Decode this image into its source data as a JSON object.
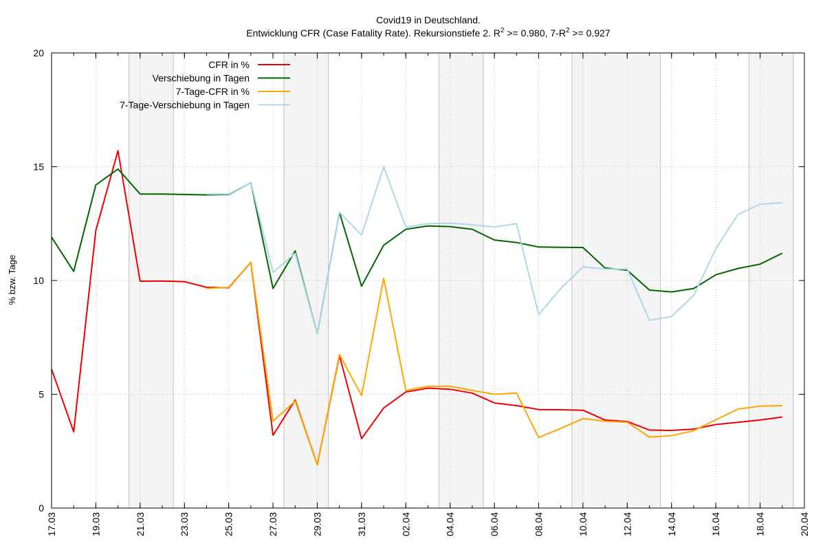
{
  "chart_data": {
    "type": "line",
    "title": "Covid19 in Deutschland.",
    "subtitle": {
      "part1": "Entwicklung CFR (Case Fatality Rate). Rekursionstiefe 2. R",
      "sup1": "2",
      "part2": " >= 0.980, 7-R",
      "sup2": "2",
      "part3": " >= 0.927"
    },
    "xlabel": "",
    "ylabel": "% bzw. Tage",
    "ylim": [
      0,
      20
    ],
    "yticks": [
      0,
      5,
      10,
      15,
      20
    ],
    "xlim": [
      "17.03",
      "20.04"
    ],
    "xticks": [
      "17.03",
      "19.03",
      "21.03",
      "23.03",
      "25.03",
      "27.03",
      "29.03",
      "31.03",
      "02.04",
      "04.04",
      "06.04",
      "08.04",
      "10.04",
      "12.04",
      "14.04",
      "16.04",
      "18.04",
      "20.04"
    ],
    "weekend_shading": [
      [
        "20.03.5",
        "22.03.5"
      ],
      [
        "27.03.5",
        "29.03.5"
      ],
      [
        "03.04.5",
        "05.04.5"
      ],
      [
        "09.04.5",
        "13.04.5"
      ],
      [
        "17.04.5",
        "19.04.5"
      ]
    ],
    "grid": true,
    "legend_position": "top-left",
    "series": [
      {
        "name": "CFR in %",
        "color": "#ee0000",
        "points": [
          [
            "17.03",
            6.1
          ],
          [
            "18.03",
            3.35
          ],
          [
            "19.03",
            12.2
          ],
          [
            "20.03",
            15.7
          ],
          [
            "21.03",
            9.97
          ],
          [
            "22.03",
            9.98
          ],
          [
            "23.03",
            9.95
          ],
          [
            "24.03",
            9.7
          ],
          [
            "25.03",
            9.68
          ],
          [
            "26.03",
            10.8
          ],
          [
            "27.03",
            3.2
          ],
          [
            "28.03",
            4.75
          ],
          [
            "29.03",
            1.9
          ],
          [
            "30.03",
            6.7
          ],
          [
            "31.03",
            3.05
          ],
          [
            "01.04",
            4.4
          ],
          [
            "02.04",
            5.1
          ],
          [
            "03.04",
            5.27
          ],
          [
            "04.04",
            5.22
          ],
          [
            "05.04",
            5.05
          ],
          [
            "06.04",
            4.62
          ],
          [
            "07.04",
            4.5
          ],
          [
            "08.04",
            4.33
          ],
          [
            "09.04",
            4.32
          ],
          [
            "10.04",
            4.3
          ],
          [
            "11.04",
            3.87
          ],
          [
            "12.04",
            3.8
          ],
          [
            "13.04",
            3.43
          ],
          [
            "14.04",
            3.41
          ],
          [
            "15.04",
            3.47
          ],
          [
            "16.04",
            3.67
          ],
          [
            "17.04",
            3.77
          ],
          [
            "18.04",
            3.87
          ],
          [
            "19.04",
            4.0
          ]
        ]
      },
      {
        "name": "Verschiebung in Tagen",
        "color": "#006400",
        "points": [
          [
            "17.03",
            11.9
          ],
          [
            "18.03",
            10.4
          ],
          [
            "19.03",
            14.2
          ],
          [
            "20.03",
            14.9
          ],
          [
            "21.03",
            13.8
          ],
          [
            "22.03",
            13.8
          ],
          [
            "23.03",
            13.78
          ],
          [
            "24.03",
            13.76
          ],
          [
            "25.03",
            13.78
          ],
          [
            "26.03",
            14.3
          ],
          [
            "27.03",
            9.65
          ],
          [
            "28.03",
            11.3
          ],
          [
            "29.03",
            7.65
          ],
          [
            "30.03",
            13.0
          ],
          [
            "31.03",
            9.75
          ],
          [
            "01.04",
            11.55
          ],
          [
            "02.04",
            12.25
          ],
          [
            "03.04",
            12.4
          ],
          [
            "04.04",
            12.37
          ],
          [
            "05.04",
            12.25
          ],
          [
            "06.04",
            11.78
          ],
          [
            "07.04",
            11.67
          ],
          [
            "08.04",
            11.47
          ],
          [
            "09.04",
            11.46
          ],
          [
            "10.04",
            11.45
          ],
          [
            "11.04",
            10.55
          ],
          [
            "12.04",
            10.45
          ],
          [
            "13.04",
            9.58
          ],
          [
            "14.04",
            9.5
          ],
          [
            "15.04",
            9.65
          ],
          [
            "16.04",
            10.25
          ],
          [
            "17.04",
            10.53
          ],
          [
            "18.04",
            10.72
          ],
          [
            "19.04",
            11.2
          ]
        ]
      },
      {
        "name": "7-Tage-CFR in %",
        "color": "#ffa500",
        "points": [
          [
            "24.03",
            9.65
          ],
          [
            "25.03",
            9.7
          ],
          [
            "26.03",
            10.8
          ],
          [
            "27.03",
            3.82
          ],
          [
            "28.03",
            4.7
          ],
          [
            "29.03",
            1.9
          ],
          [
            "30.03",
            6.75
          ],
          [
            "31.03",
            4.95
          ],
          [
            "01.04",
            10.1
          ],
          [
            "02.04",
            5.17
          ],
          [
            "03.04",
            5.35
          ],
          [
            "04.04",
            5.35
          ],
          [
            "05.04",
            5.17
          ],
          [
            "06.04",
            5.0
          ],
          [
            "07.04",
            5.05
          ],
          [
            "08.04",
            3.1
          ],
          [
            "09.04",
            3.5
          ],
          [
            "10.04",
            3.93
          ],
          [
            "11.04",
            3.82
          ],
          [
            "12.04",
            3.77
          ],
          [
            "13.04",
            3.12
          ],
          [
            "14.04",
            3.18
          ],
          [
            "15.04",
            3.4
          ],
          [
            "16.04",
            3.88
          ],
          [
            "17.04",
            4.35
          ],
          [
            "18.04",
            4.48
          ],
          [
            "19.04",
            4.5
          ]
        ]
      },
      {
        "name": "7-Tage-Verschiebung in Tagen",
        "color": "#add8e6",
        "points": [
          [
            "24.03",
            13.8
          ],
          [
            "25.03",
            13.8
          ],
          [
            "26.03",
            14.3
          ],
          [
            "27.03",
            10.35
          ],
          [
            "28.03",
            11.2
          ],
          [
            "29.03",
            7.65
          ],
          [
            "30.03",
            13.0
          ],
          [
            "31.03",
            12.0
          ],
          [
            "01.04",
            15.0
          ],
          [
            "02.04",
            12.35
          ],
          [
            "03.04",
            12.5
          ],
          [
            "04.04",
            12.52
          ],
          [
            "05.04",
            12.45
          ],
          [
            "06.04",
            12.35
          ],
          [
            "07.04",
            12.5
          ],
          [
            "08.04",
            8.5
          ],
          [
            "09.04",
            9.65
          ],
          [
            "10.04",
            10.6
          ],
          [
            "11.04",
            10.5
          ],
          [
            "12.04",
            10.5
          ],
          [
            "13.04",
            8.25
          ],
          [
            "14.04",
            8.42
          ],
          [
            "15.04",
            9.35
          ],
          [
            "16.04",
            11.4
          ],
          [
            "17.04",
            12.9
          ],
          [
            "18.04",
            13.35
          ],
          [
            "19.04",
            13.42
          ]
        ]
      }
    ]
  }
}
